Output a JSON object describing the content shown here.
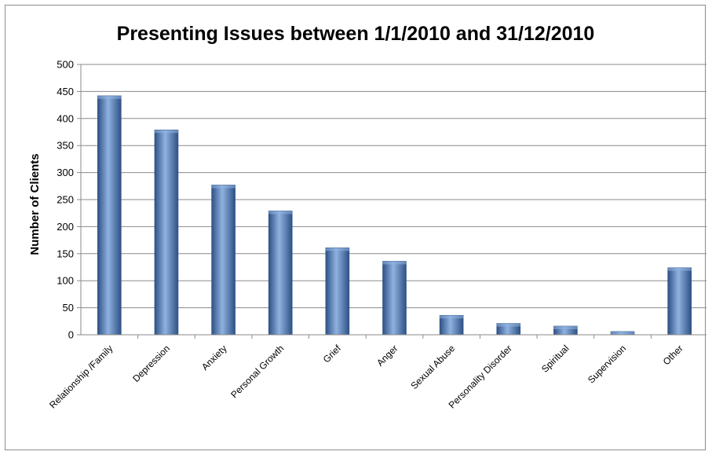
{
  "chart_data": {
    "type": "bar",
    "title": "Presenting Issues between 1/1/2010 and 31/12/2010",
    "xlabel": "",
    "ylabel": "Number of Clients",
    "ylim": [
      0,
      500
    ],
    "yticks": [
      0,
      50,
      100,
      150,
      200,
      250,
      300,
      350,
      400,
      450,
      500
    ],
    "grid": true,
    "legend": "none",
    "categories": [
      "Relationship /Family",
      "Depression",
      "Anxiety",
      "Personal Growth",
      "Grief",
      "Anger",
      "Sexual Abuse",
      "Personality Disorder",
      "Spiritual",
      "Supervision",
      "Other"
    ],
    "values": [
      442,
      379,
      277,
      229,
      161,
      136,
      36,
      21,
      16,
      6,
      124
    ],
    "colors": {
      "bar_dark": "#2e5186",
      "bar_mid": "#4f81bd",
      "bar_light": "#8fb2e0",
      "grid": "#8a8a8a"
    }
  }
}
